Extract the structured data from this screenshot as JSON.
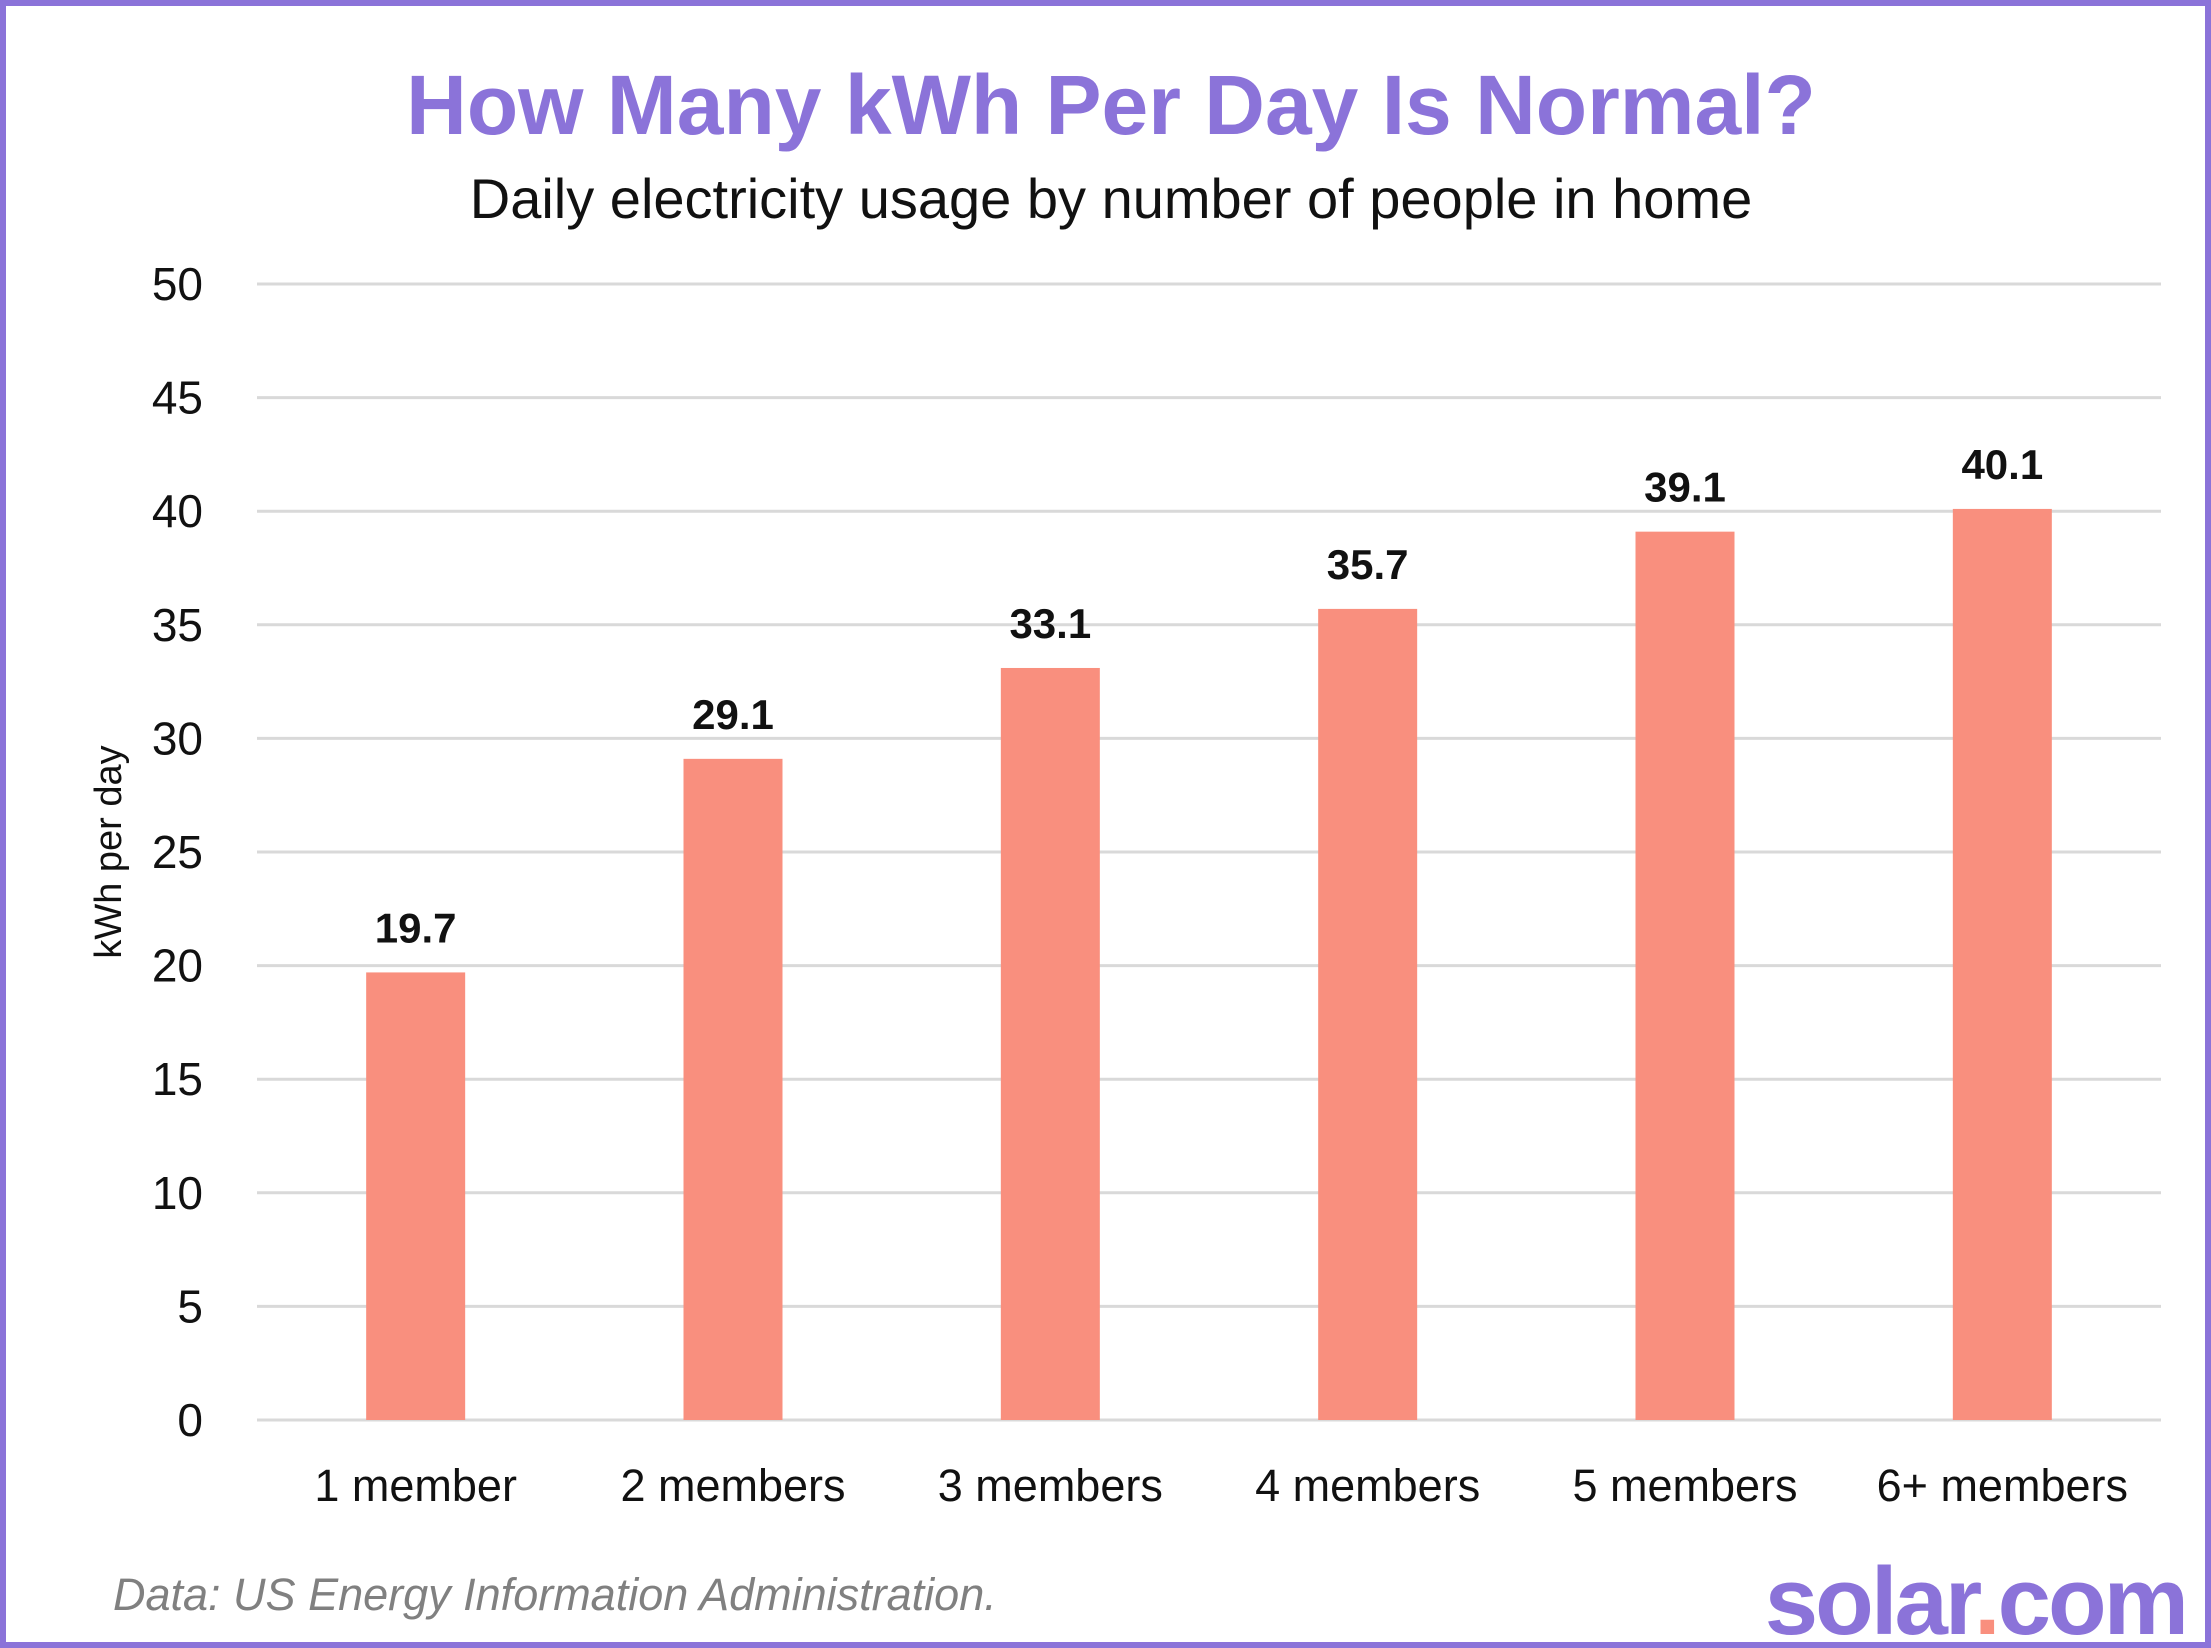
{
  "chart_data": {
    "type": "bar",
    "title": "How Many kWh Per Day Is Normal?",
    "subtitle": "Daily electricity usage by number of people in home",
    "xlabel": "",
    "ylabel": "kWh per day",
    "categories": [
      "1 member",
      "2 members",
      "3 members",
      "4 members",
      "5 members",
      "6+ members"
    ],
    "values": [
      19.7,
      29.1,
      33.1,
      35.7,
      39.1,
      40.1
    ],
    "ylim": [
      0,
      50
    ],
    "yticks": [
      0,
      5,
      10,
      15,
      20,
      25,
      30,
      35,
      40,
      45,
      50
    ],
    "grid": true,
    "legend": "none",
    "bar_color": "#f98f7e",
    "accent_color": "#8b73d9"
  },
  "footer": {
    "source": "Data: US Energy Information Administration.",
    "logo": "solar.com"
  }
}
